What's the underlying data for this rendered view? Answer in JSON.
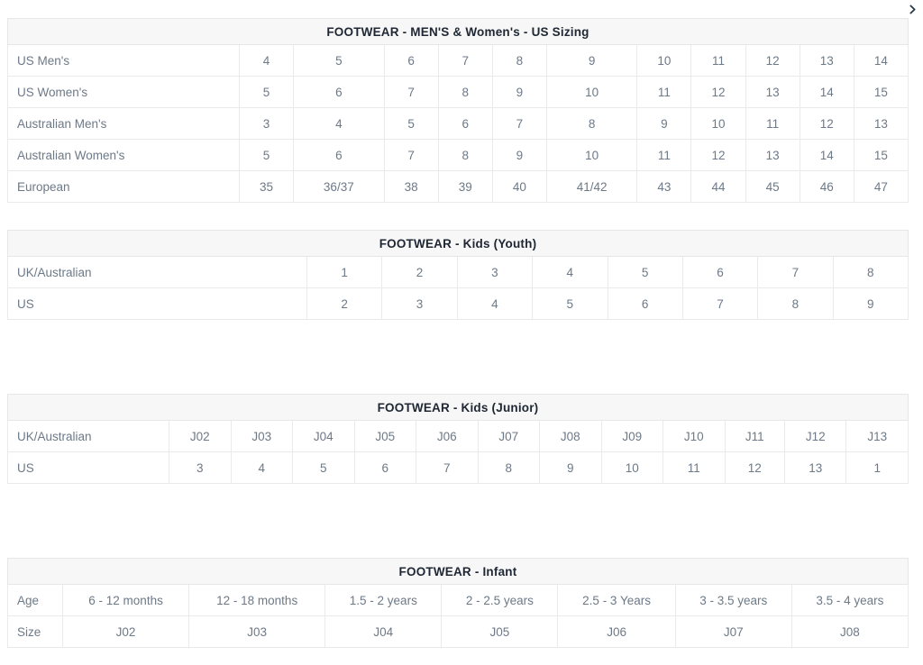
{
  "panel": {
    "close_icon": "chevron-right",
    "icon_color": "#2b3844"
  },
  "colors": {
    "page_bg": "#ffffff",
    "title_band_bg": "#f7f7f7",
    "title_text": "#1e2733",
    "cell_text": "#6d7987",
    "border": "#e9eaec"
  },
  "tables": [
    {
      "id": "mens-womens-us-sizing",
      "title": "FOOTWEAR - MEN'S & Women's - US Sizing",
      "label_column_width": 257,
      "margin_top": 0,
      "rows": [
        {
          "label": "US Men's",
          "values": [
            "4",
            "5",
            "6",
            "7",
            "8",
            "9",
            "10",
            "11",
            "12",
            "13",
            "14"
          ]
        },
        {
          "label": "US Women's",
          "values": [
            "5",
            "6",
            "7",
            "8",
            "9",
            "10",
            "11",
            "12",
            "13",
            "14",
            "15"
          ]
        },
        {
          "label": "Australian Men's",
          "values": [
            "3",
            "4",
            "5",
            "6",
            "7",
            "8",
            "9",
            "10",
            "11",
            "12",
            "13"
          ]
        },
        {
          "label": "Australian Women's",
          "values": [
            "5",
            "6",
            "7",
            "8",
            "9",
            "10",
            "11",
            "12",
            "13",
            "14",
            "15"
          ]
        },
        {
          "label": "European",
          "values": [
            "35",
            "36/37",
            "38",
            "39",
            "40",
            "41/42",
            "43",
            "44",
            "45",
            "46",
            "47"
          ]
        }
      ]
    },
    {
      "id": "kids-youth",
      "title": "FOOTWEAR - Kids (Youth)",
      "label_column_width": 332,
      "margin_top": 30,
      "rows": [
        {
          "label": "UK/Australian",
          "values": [
            "1",
            "2",
            "3",
            "4",
            "5",
            "6",
            "7",
            "8"
          ]
        },
        {
          "label": "US",
          "values": [
            "2",
            "3",
            "4",
            "5",
            "6",
            "7",
            "8",
            "9"
          ]
        }
      ]
    },
    {
      "id": "kids-junior",
      "title": "FOOTWEAR - Kids (Junior)",
      "label_column_width": 179,
      "margin_top": 82,
      "rows": [
        {
          "label": "UK/Australian",
          "values": [
            "J02",
            "J03",
            "J04",
            "J05",
            "J06",
            "J07",
            "J08",
            "J09",
            "J10",
            "J11",
            "J12",
            "J13"
          ]
        },
        {
          "label": "US",
          "values": [
            "3",
            "4",
            "5",
            "6",
            "7",
            "8",
            "9",
            "10",
            "11",
            "12",
            "13",
            "1"
          ]
        }
      ]
    },
    {
      "id": "infant",
      "title": "FOOTWEAR - Infant",
      "label_column_width": 61,
      "margin_top": 82,
      "rows": [
        {
          "label": "Age",
          "values": [
            "6 - 12 months",
            "12 - 18 months",
            "1.5 - 2 years",
            "2 - 2.5 years",
            "2.5 - 3 Years",
            "3 - 3.5 years",
            "3.5 - 4 years"
          ]
        },
        {
          "label": "Size",
          "values": [
            "J02",
            "J03",
            "J04",
            "J05",
            "J06",
            "J07",
            "J08"
          ]
        }
      ]
    }
  ]
}
